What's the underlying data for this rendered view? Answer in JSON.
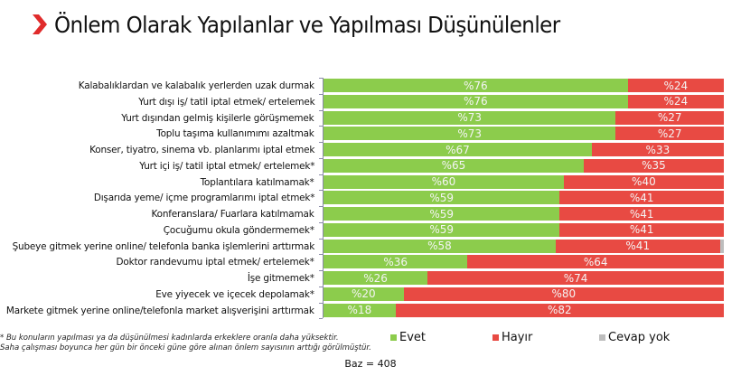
{
  "header": {
    "title": "Önlem Olarak Yapılanlar ve Yapılması Düşünülenler",
    "accent_color": "#e02b2b"
  },
  "colors": {
    "evet": "#8ccc4c",
    "hayir": "#e84a43",
    "cevap_yok": "#bdbdbd"
  },
  "chart_data": {
    "type": "bar",
    "orientation": "horizontal",
    "stacked": true,
    "percent": true,
    "title": "Önlem Olarak Yapılanlar ve Yapılması Düşünülenler",
    "xlabel": "",
    "ylabel": "",
    "xlim": [
      0,
      100
    ],
    "grid": false,
    "legend_position": "bottom",
    "categories": [
      "Kalabalıklardan ve kalabalık yerlerden uzak durmak",
      "Yurt dışı iş/ tatil iptal etmek/ ertelemek",
      "Yurt dışından gelmiş kişilerle görüşmemek",
      "Toplu taşıma kullanımımı azaltmak",
      "Konser, tiyatro, sinema vb. planlarımı iptal etmek",
      "Yurt içi iş/ tatil iptal etmek/ ertelemek*",
      "Toplantılara katılmamak*",
      "Dışarıda yeme/ içme programlarımı iptal etmek*",
      "Konferanslara/ Fuarlara katılmamak",
      "Çocuğumu okula göndermemek*",
      "Şubeye gitmek yerine online/ telefonla banka işlemlerini arttırmak",
      "Doktor randevumu iptal etmek/ ertelemek*",
      "İşe gitmemek*",
      "Eve yiyecek ve içecek depolamak*",
      "Markete gitmek yerine online/telefonla market alışverişini arttırmak"
    ],
    "series": [
      {
        "name": "Evet",
        "color": "#8ccc4c",
        "values": [
          76,
          76,
          73,
          73,
          67,
          65,
          60,
          59,
          59,
          59,
          58,
          36,
          26,
          20,
          18
        ]
      },
      {
        "name": "Hayır",
        "color": "#e84a43",
        "values": [
          24,
          24,
          27,
          27,
          33,
          35,
          40,
          41,
          41,
          41,
          41,
          64,
          74,
          80,
          82
        ]
      },
      {
        "name": "Cevap yok",
        "color": "#bdbdbd",
        "values": [
          0,
          0,
          0,
          0,
          0,
          0,
          0,
          0,
          0,
          0,
          1,
          0,
          0,
          0,
          0
        ]
      }
    ],
    "value_labels_prefix": "%",
    "annotations": [
      "* Bu konuların yapılması ya da düşünülmesi kadınlarda erkeklere oranla daha yüksektir.",
      "Saha çalışması boyunca her gün bir önceki güne göre alınan önlem sayısının arttığı görülmüştür.",
      "Baz = 408"
    ]
  },
  "rows": [
    {
      "label": "Kalabalıklardan ve kalabalık yerlerden uzak durmak",
      "evet": 76,
      "hayir": 24,
      "cevap": 0,
      "evet_text": "%76",
      "hayir_text": "%24"
    },
    {
      "label": "Yurt dışı iş/ tatil iptal etmek/ ertelemek",
      "evet": 76,
      "hayir": 24,
      "cevap": 0,
      "evet_text": "%76",
      "hayir_text": "%24"
    },
    {
      "label": "Yurt dışından gelmiş kişilerle görüşmemek",
      "evet": 73,
      "hayir": 27,
      "cevap": 0,
      "evet_text": "%73",
      "hayir_text": "%27"
    },
    {
      "label": "Toplu taşıma kullanımımı azaltmak",
      "evet": 73,
      "hayir": 27,
      "cevap": 0,
      "evet_text": "%73",
      "hayir_text": "%27"
    },
    {
      "label": "Konser, tiyatro, sinema vb. planlarımı iptal etmek",
      "evet": 67,
      "hayir": 33,
      "cevap": 0,
      "evet_text": "%67",
      "hayir_text": "%33"
    },
    {
      "label": "Yurt içi iş/ tatil iptal etmek/ ertelemek*",
      "evet": 65,
      "hayir": 35,
      "cevap": 0,
      "evet_text": "%65",
      "hayir_text": "%35"
    },
    {
      "label": "Toplantılara katılmamak*",
      "evet": 60,
      "hayir": 40,
      "cevap": 0,
      "evet_text": "%60",
      "hayir_text": "%40"
    },
    {
      "label": "Dışarıda yeme/ içme programlarımı iptal etmek*",
      "evet": 59,
      "hayir": 41,
      "cevap": 0,
      "evet_text": "%59",
      "hayir_text": "%41"
    },
    {
      "label": "Konferanslara/ Fuarlara katılmamak",
      "evet": 59,
      "hayir": 41,
      "cevap": 0,
      "evet_text": "%59",
      "hayir_text": "%41"
    },
    {
      "label": "Çocuğumu okula göndermemek*",
      "evet": 59,
      "hayir": 41,
      "cevap": 0,
      "evet_text": "%59",
      "hayir_text": "%41"
    },
    {
      "label": "Şubeye gitmek yerine online/ telefonla banka işlemlerini arttırmak",
      "evet": 58,
      "hayir": 41,
      "cevap": 1,
      "evet_text": "%58",
      "hayir_text": "%41"
    },
    {
      "label": "Doktor randevumu iptal etmek/ ertelemek*",
      "evet": 36,
      "hayir": 64,
      "cevap": 0,
      "evet_text": "%36",
      "hayir_text": "%64"
    },
    {
      "label": "İşe gitmemek*",
      "evet": 26,
      "hayir": 74,
      "cevap": 0,
      "evet_text": "%26",
      "hayir_text": "%74"
    },
    {
      "label": "Eve yiyecek ve içecek depolamak*",
      "evet": 20,
      "hayir": 80,
      "cevap": 0,
      "evet_text": "%20",
      "hayir_text": "%80"
    },
    {
      "label": "Markete gitmek yerine online/telefonla market alışverişini arttırmak",
      "evet": 18,
      "hayir": 82,
      "cevap": 0,
      "evet_text": "%18",
      "hayir_text": "%82"
    }
  ],
  "legend": {
    "evet": "Evet",
    "hayir": "Hayır",
    "cevap_yok": "Cevap yok"
  },
  "footnote": {
    "line1": "* Bu konuların yapılması ya da düşünülmesi kadınlarda erkeklere oranla daha yüksektir.",
    "line2": "Saha çalışması boyunca her gün bir önceki güne göre alınan önlem sayısının arttığı görülmüştür."
  },
  "base": "Baz = 408"
}
